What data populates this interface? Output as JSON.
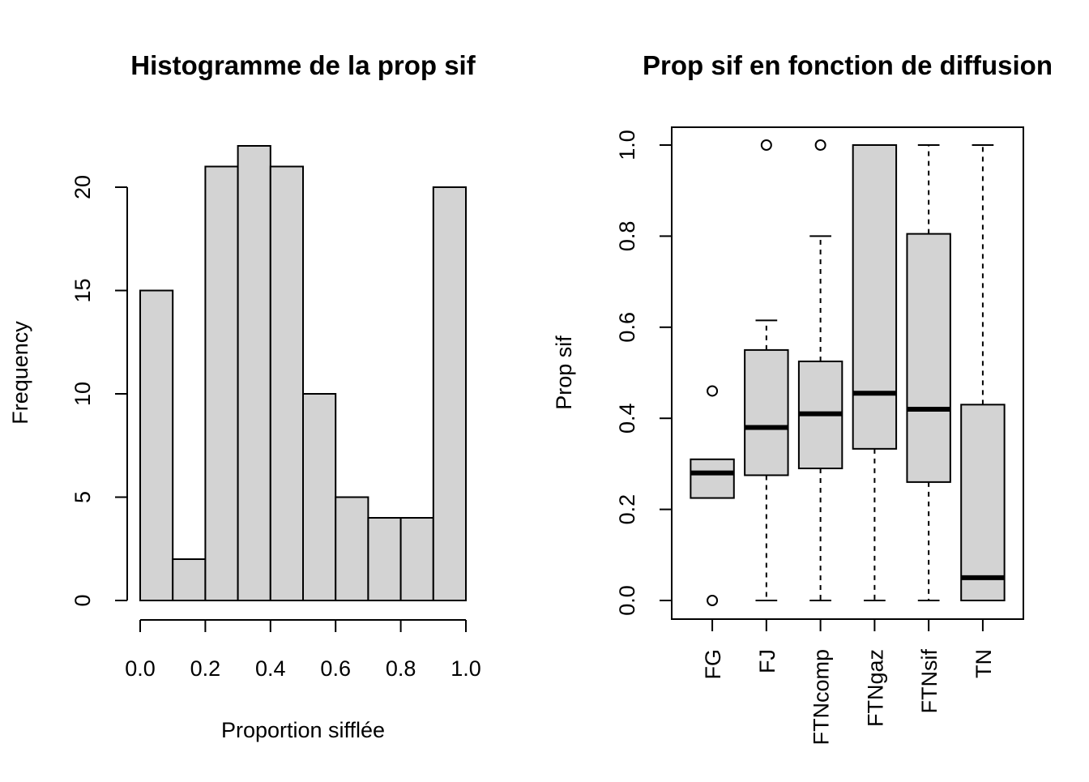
{
  "chart_data": [
    {
      "type": "histogram",
      "title": "Histogramme de la prop sif",
      "xlabel": "Proportion sifflée",
      "ylabel": "Frequency",
      "xlim": [
        0,
        1
      ],
      "ylim": [
        0,
        22
      ],
      "bins": [
        {
          "x0": 0.0,
          "x1": 0.1,
          "count": 15
        },
        {
          "x0": 0.1,
          "x1": 0.2,
          "count": 2
        },
        {
          "x0": 0.2,
          "x1": 0.3,
          "count": 21
        },
        {
          "x0": 0.3,
          "x1": 0.4,
          "count": 22
        },
        {
          "x0": 0.4,
          "x1": 0.5,
          "count": 21
        },
        {
          "x0": 0.5,
          "x1": 0.6,
          "count": 10
        },
        {
          "x0": 0.6,
          "x1": 0.7,
          "count": 5
        },
        {
          "x0": 0.7,
          "x1": 0.8,
          "count": 4
        },
        {
          "x0": 0.8,
          "x1": 0.9,
          "count": 4
        },
        {
          "x0": 0.9,
          "x1": 1.0,
          "count": 20
        }
      ],
      "x_ticks": [
        {
          "value": 0.0,
          "label": "0.0"
        },
        {
          "value": 0.2,
          "label": "0.2"
        },
        {
          "value": 0.4,
          "label": "0.4"
        },
        {
          "value": 0.6,
          "label": "0.6"
        },
        {
          "value": 0.8,
          "label": "0.8"
        },
        {
          "value": 1.0,
          "label": "1.0"
        }
      ],
      "y_ticks": [
        {
          "value": 0,
          "label": "0"
        },
        {
          "value": 5,
          "label": "5"
        },
        {
          "value": 10,
          "label": "10"
        },
        {
          "value": 15,
          "label": "15"
        },
        {
          "value": 20,
          "label": "20"
        }
      ],
      "grid": false,
      "bar_fill": "#d3d3d3",
      "bar_stroke": "#000000"
    },
    {
      "type": "boxplot",
      "title": "Prop sif en fonction de diffusion",
      "xlabel": "",
      "ylabel": "Prop sif",
      "ylim": [
        0,
        1
      ],
      "y_ticks": [
        {
          "value": 0.0,
          "label": "0.0"
        },
        {
          "value": 0.2,
          "label": "0.2"
        },
        {
          "value": 0.4,
          "label": "0.4"
        },
        {
          "value": 0.6,
          "label": "0.6"
        },
        {
          "value": 0.8,
          "label": "0.8"
        },
        {
          "value": 1.0,
          "label": "1.0"
        }
      ],
      "categories": [
        "FG",
        "FJ",
        "FTNcomp",
        "FTNgaz",
        "FTNsif",
        "TN"
      ],
      "boxes": [
        {
          "category": "FG",
          "whisker_low": 0.225,
          "q1": 0.225,
          "median": 0.28,
          "q3": 0.31,
          "whisker_high": 0.31,
          "outliers": [
            0.46,
            0.0
          ]
        },
        {
          "category": "FJ",
          "whisker_low": 0.0,
          "q1": 0.275,
          "median": 0.38,
          "q3": 0.55,
          "whisker_high": 0.615,
          "outliers": [
            1.0
          ]
        },
        {
          "category": "FTNcomp",
          "whisker_low": 0.0,
          "q1": 0.29,
          "median": 0.41,
          "q3": 0.525,
          "whisker_high": 0.8,
          "outliers": [
            1.0
          ]
        },
        {
          "category": "FTNgaz",
          "whisker_low": 0.0,
          "q1": 0.333,
          "median": 0.455,
          "q3": 1.0,
          "whisker_high": 1.0,
          "outliers": []
        },
        {
          "category": "FTNsif",
          "whisker_low": 0.0,
          "q1": 0.26,
          "median": 0.42,
          "q3": 0.805,
          "whisker_high": 1.0,
          "outliers": []
        },
        {
          "category": "TN",
          "whisker_low": 0.0,
          "q1": 0.0,
          "median": 0.05,
          "q3": 0.43,
          "whisker_high": 1.0,
          "outliers": []
        }
      ],
      "grid": false,
      "box_fill": "#d3d3d3",
      "box_stroke": "#000000"
    }
  ]
}
